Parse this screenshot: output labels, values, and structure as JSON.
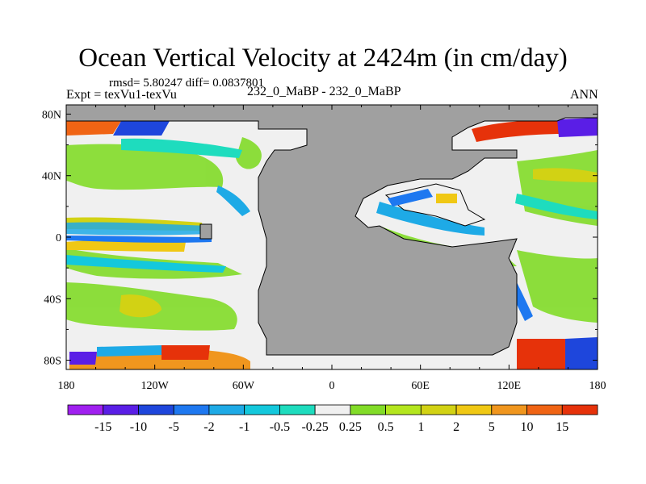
{
  "chart_data": {
    "type": "heatmap",
    "title": "Ocean Vertical Velocity at 2424m (in cm/day)",
    "stats_line": "rmsd= 5.80247  diff= 0.0837801",
    "expt_label": "Expt = texVu1-texVu",
    "center_label": "232_0_MaBP - 232_0_MaBP",
    "season_label": "ANN",
    "x_ticks": [
      "180",
      "120W",
      "60W",
      "0",
      "60E",
      "120E",
      "180"
    ],
    "x_tick_values": [
      -180,
      -120,
      -60,
      0,
      60,
      120,
      180
    ],
    "y_ticks": [
      "80N",
      "40N",
      "0",
      "40S",
      "80S"
    ],
    "y_tick_values": [
      80,
      40,
      0,
      -40,
      -80
    ],
    "xlim": [
      -180,
      180
    ],
    "ylim": [
      -86,
      86
    ],
    "colorbar": {
      "labels": [
        "-15",
        "-10",
        "-5",
        "-2",
        "-1",
        "-0.5",
        "-0.25",
        "0.25",
        "0.5",
        "1",
        "2",
        "5",
        "10",
        "15"
      ],
      "colors": [
        "#a020f0",
        "#5a1ee6",
        "#1e46dc",
        "#1e78f0",
        "#1eaae6",
        "#14c8dc",
        "#1edcbe",
        "#f0f0f0",
        "#82dc28",
        "#b4e61e",
        "#d2d214",
        "#f0c814",
        "#f0961e",
        "#f06414",
        "#e6320a"
      ]
    },
    "land_color": "#a0a0a0",
    "no_signal_color": "#f0f0f0"
  }
}
